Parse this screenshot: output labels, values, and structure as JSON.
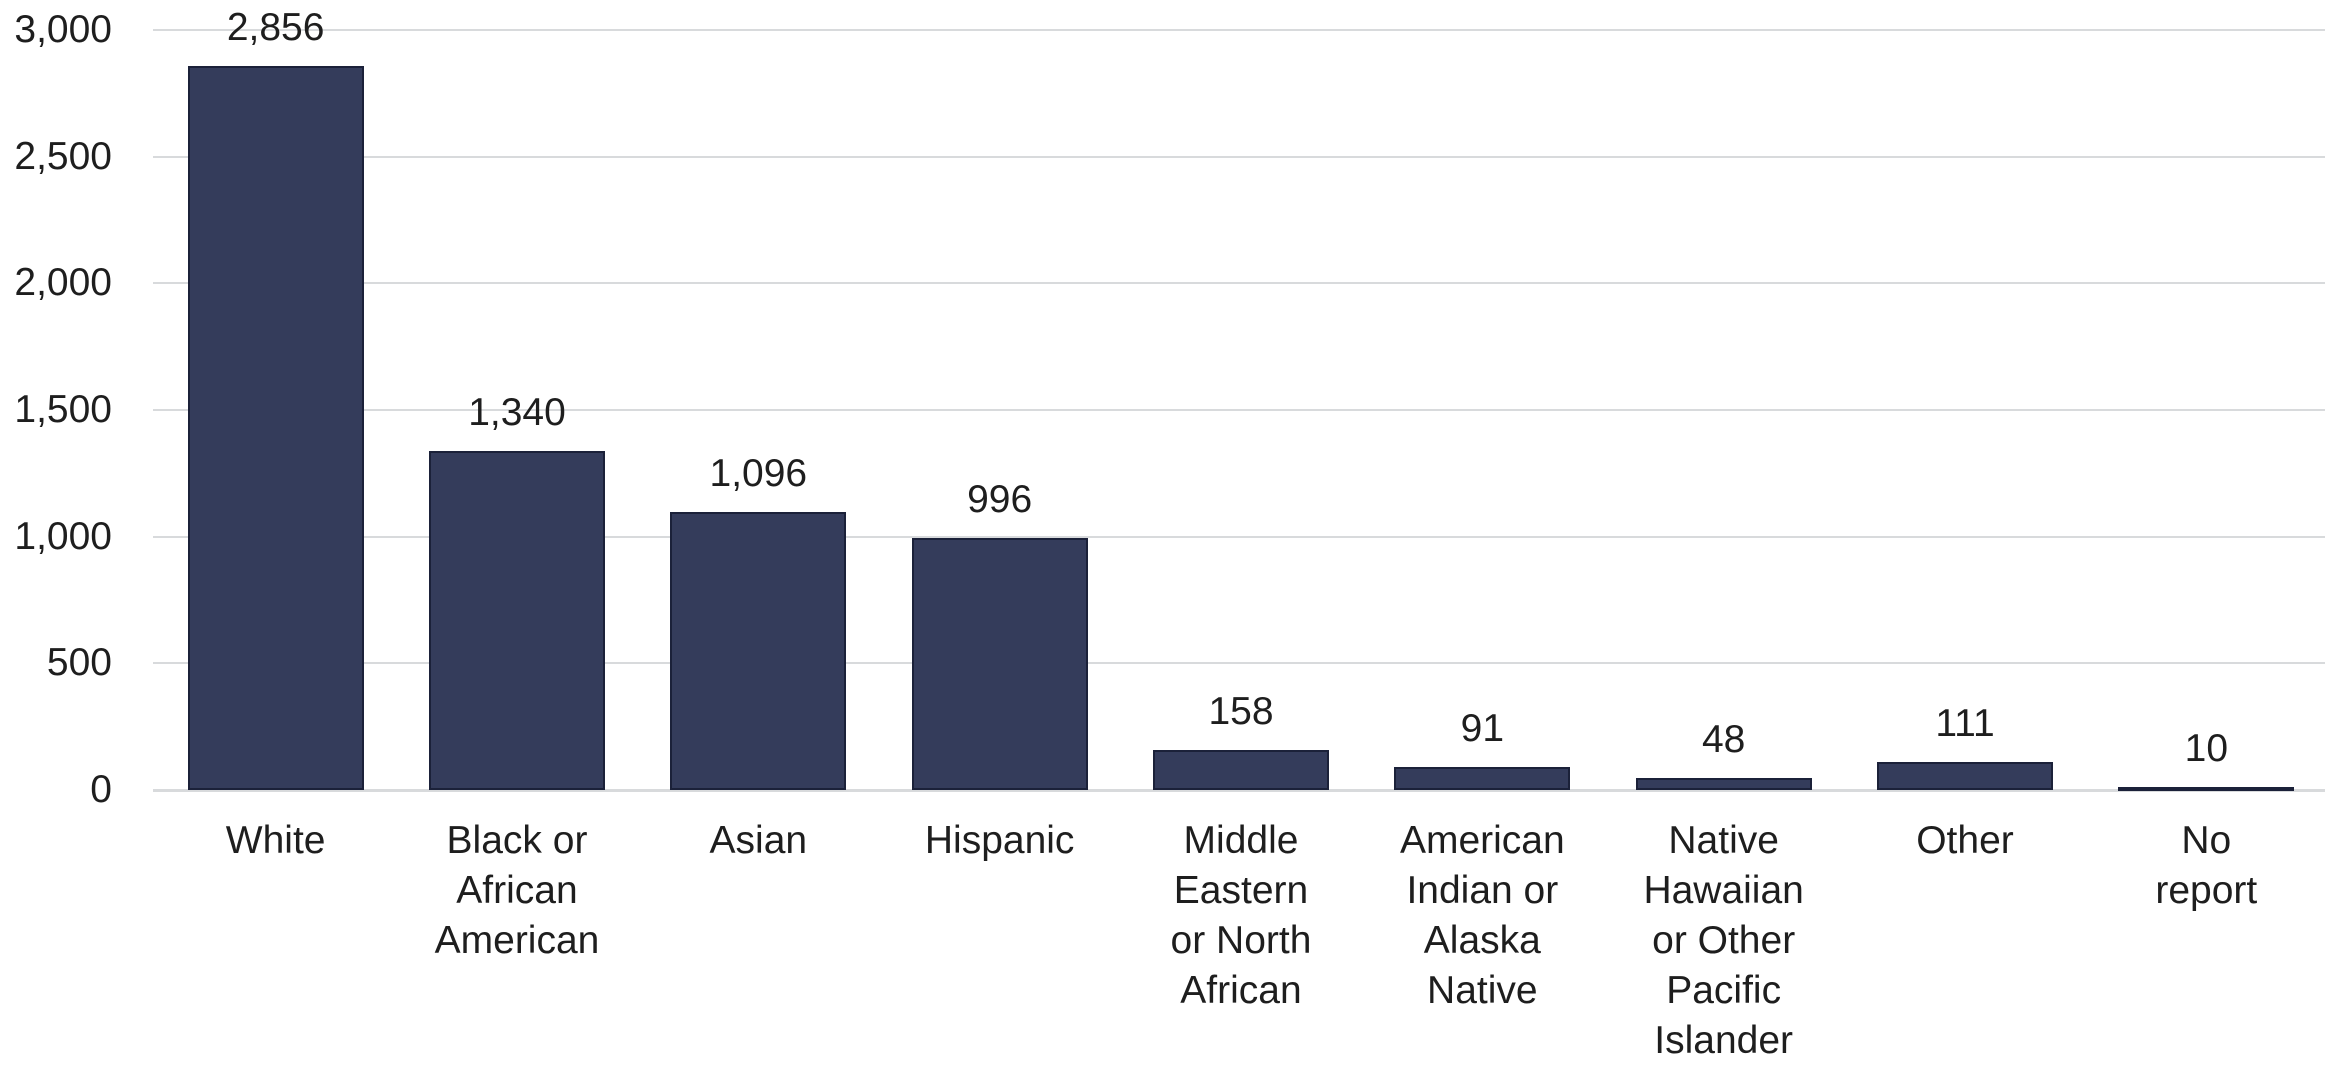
{
  "chart_data": {
    "type": "bar",
    "title": "",
    "xlabel": "",
    "ylabel": "",
    "categories": [
      "White",
      "Black or\nAfrican\nAmerican",
      "Asian",
      "Hispanic",
      "Middle\nEastern\nor North\nAfrican",
      "American\nIndian or\nAlaska\nNative",
      "Native\nHawaiian\nor Other\nPacific\nIslander",
      "Other",
      "No\nreport"
    ],
    "values": [
      2856,
      1340,
      1096,
      996,
      158,
      91,
      48,
      111,
      10
    ],
    "value_labels": [
      "2,856",
      "1,340",
      "1,096",
      "996",
      "158",
      "91",
      "48",
      "111",
      "10"
    ],
    "y_ticks": [
      {
        "value": 0,
        "label": "0"
      },
      {
        "value": 500,
        "label": "500"
      },
      {
        "value": 1000,
        "label": "1,000"
      },
      {
        "value": 1500,
        "label": "1,500"
      },
      {
        "value": 2000,
        "label": "2,000"
      },
      {
        "value": 2500,
        "label": "2,500"
      },
      {
        "value": 3000,
        "label": "3,000"
      }
    ],
    "ylim": [
      0,
      3000
    ],
    "grid": true,
    "legend": "none",
    "colors": {
      "bar_fill": "#343c5b",
      "bar_border": "#1b2139",
      "gridline": "#d8dadc",
      "text": "#1e1e1e",
      "background": "#ffffff"
    }
  }
}
